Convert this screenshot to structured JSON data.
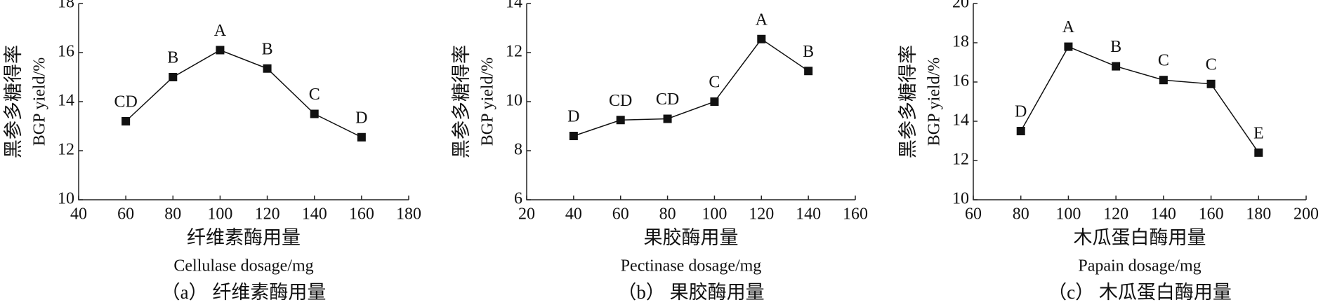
{
  "chart_data": [
    {
      "type": "line",
      "title": "（a） 纤维素酶用量",
      "xlabel": [
        "纤维素酶用量",
        "Cellulase dosage/mg"
      ],
      "ylabel": [
        "黑参多糖得率",
        "BGP yield/%"
      ],
      "x": [
        60,
        80,
        100,
        120,
        140,
        160
      ],
      "values": [
        13.2,
        15.0,
        16.1,
        15.35,
        13.5,
        12.55
      ],
      "point_labels": [
        "CD",
        "B",
        "A",
        "B",
        "C",
        "D"
      ],
      "color": "#111111",
      "xlim": [
        40,
        180
      ],
      "xticks": [
        40,
        60,
        80,
        100,
        120,
        140,
        160,
        180
      ],
      "ylim": [
        10,
        18
      ],
      "yticks": [
        10,
        12,
        14,
        16,
        18
      ]
    },
    {
      "type": "line",
      "title": "（b） 果胶酶用量",
      "xlabel": [
        "果胶酶用量",
        "Pectinase dosage/mg"
      ],
      "ylabel": [
        "黑参多糖得率",
        "BGP yield/%"
      ],
      "x": [
        40,
        60,
        80,
        100,
        120,
        140
      ],
      "values": [
        8.6,
        9.25,
        9.3,
        10.0,
        12.55,
        11.25
      ],
      "point_labels": [
        "D",
        "CD",
        "CD",
        "C",
        "A",
        "B"
      ],
      "color": "#111111",
      "xlim": [
        20,
        160
      ],
      "xticks": [
        20,
        40,
        60,
        80,
        100,
        120,
        140,
        160
      ],
      "ylim": [
        6,
        14
      ],
      "yticks": [
        6,
        8,
        10,
        12,
        14
      ]
    },
    {
      "type": "line",
      "title": "（c） 木瓜蛋白酶用量",
      "xlabel": [
        "木瓜蛋白酶用量",
        "Papain dosage/mg"
      ],
      "ylabel": [
        "黑参多糖得率",
        "BGP yield/%"
      ],
      "x": [
        80,
        100,
        120,
        140,
        160,
        180
      ],
      "values": [
        13.5,
        17.8,
        16.8,
        16.1,
        15.9,
        12.4
      ],
      "point_labels": [
        "D",
        "A",
        "B",
        "C",
        "C",
        "E"
      ],
      "color": "#111111",
      "xlim": [
        60,
        200
      ],
      "xticks": [
        60,
        80,
        100,
        120,
        140,
        160,
        180,
        200
      ],
      "ylim": [
        10,
        20
      ],
      "yticks": [
        10,
        12,
        14,
        16,
        18,
        20
      ]
    }
  ]
}
